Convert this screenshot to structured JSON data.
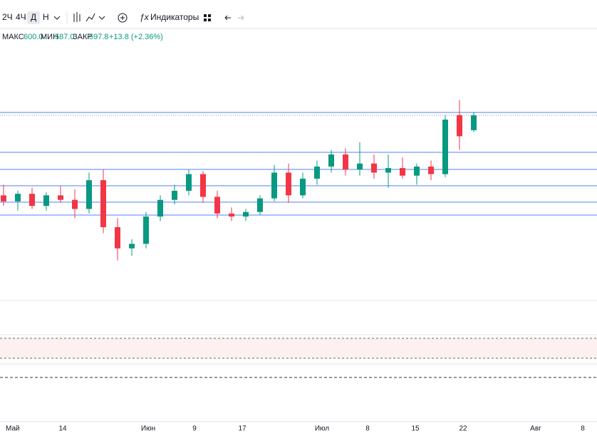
{
  "toolbar": {
    "intervals": [
      "2Ч",
      "4Ч",
      "Д",
      "Н"
    ],
    "indicators": "Индикаторы"
  },
  "legend": {
    "high_label": "МАКС",
    "high": "600.0",
    "low_label": "МИН",
    "low": "587.0",
    "close_label": "ЗАКР",
    "close": "597.8",
    "change": "+13.8 (+2.36%)"
  },
  "chart_data": {
    "type": "candlestick",
    "ylim": [
      476.5,
      654.2
    ],
    "x_labels": [
      "Май",
      "14",
      "Июн",
      "9",
      "17",
      "Июл",
      "8",
      "15",
      "22",
      "Авг",
      "8"
    ],
    "levels": [
      599.7,
      573.4,
      562.1,
      551.3,
      540.5,
      532
    ],
    "candles": [
      [
        545,
        552,
        538,
        541
      ],
      [
        541,
        548,
        535,
        546
      ],
      [
        546,
        550,
        536,
        538
      ],
      [
        538,
        547,
        535,
        545
      ],
      [
        545,
        551,
        540,
        542
      ],
      [
        542,
        549,
        530,
        536
      ],
      [
        536,
        560,
        533,
        555
      ],
      [
        555,
        562,
        520,
        524
      ],
      [
        524,
        530,
        502,
        510
      ],
      [
        510,
        516,
        505,
        513
      ],
      [
        513,
        534,
        510,
        531
      ],
      [
        531,
        545,
        528,
        542
      ],
      [
        542,
        552,
        539,
        548
      ],
      [
        548,
        562,
        545,
        559
      ],
      [
        559,
        561,
        540,
        544
      ],
      [
        544,
        548,
        530,
        533
      ],
      [
        533,
        537,
        528,
        531
      ],
      [
        531,
        536,
        528,
        534
      ],
      [
        534,
        545,
        532,
        543
      ],
      [
        543,
        565,
        541,
        560
      ],
      [
        560,
        566,
        540,
        545
      ],
      [
        545,
        560,
        543,
        556
      ],
      [
        556,
        568,
        552,
        564
      ],
      [
        564,
        575,
        560,
        572
      ],
      [
        572,
        576,
        558,
        562
      ],
      [
        562,
        580,
        558,
        566
      ],
      [
        566,
        572,
        556,
        560
      ],
      [
        560,
        572,
        550,
        563
      ],
      [
        563,
        570,
        556,
        558
      ],
      [
        558,
        566,
        552,
        564
      ],
      [
        564,
        568,
        555,
        559
      ],
      [
        559,
        598,
        557,
        595
      ],
      [
        598,
        608,
        575,
        584
      ],
      [
        588,
        600,
        587,
        597.8
      ]
    ]
  }
}
